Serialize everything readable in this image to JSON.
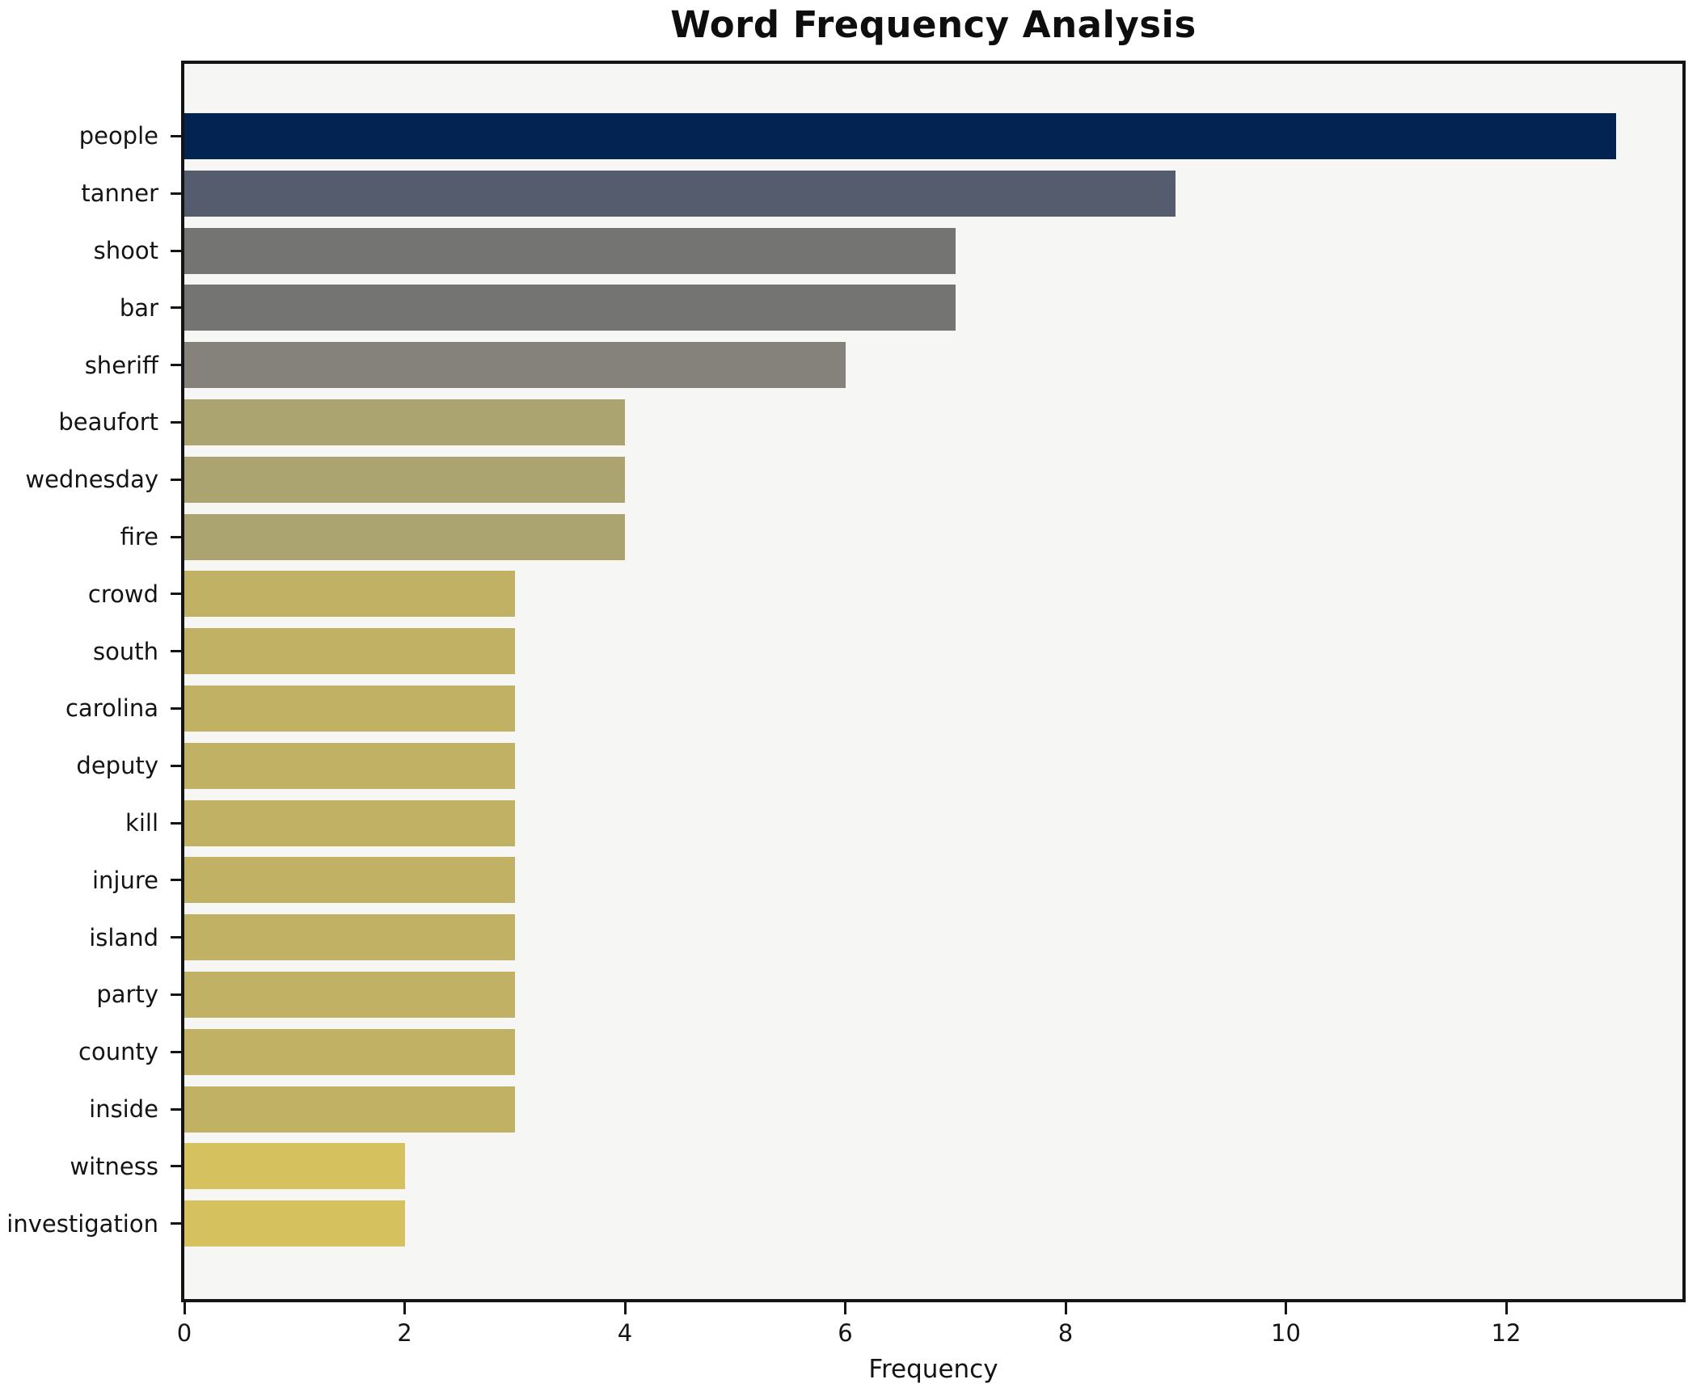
{
  "title": "Word Frequency Analysis",
  "chart_data": {
    "type": "bar",
    "orientation": "horizontal",
    "title": "Word Frequency Analysis",
    "xlabel": "Frequency",
    "ylabel": "",
    "categories": [
      "people",
      "tanner",
      "shoot",
      "bar",
      "sheriff",
      "beaufort",
      "wednesday",
      "fire",
      "crowd",
      "south",
      "carolina",
      "deputy",
      "kill",
      "injure",
      "island",
      "party",
      "county",
      "inside",
      "witness",
      "investigation"
    ],
    "values": [
      13,
      9,
      7,
      7,
      6,
      4,
      4,
      4,
      3,
      3,
      3,
      3,
      3,
      3,
      3,
      3,
      3,
      3,
      2,
      2
    ],
    "bar_colors": [
      "#032452",
      "#545c6e",
      "#747473",
      "#747473",
      "#85827b",
      "#aba471",
      "#aba471",
      "#aba471",
      "#c0b165",
      "#c0b165",
      "#c0b165",
      "#c0b165",
      "#c0b165",
      "#c0b165",
      "#c0b165",
      "#c0b165",
      "#c0b165",
      "#c0b165",
      "#d5c25f",
      "#d5c25f"
    ],
    "x_ticks": [
      0,
      2,
      4,
      6,
      8,
      10,
      12
    ],
    "xlim": [
      0,
      13.6
    ],
    "grid": false,
    "legend": null,
    "colormap_hint": "cividis (dark navy = high frequency, gold = low frequency)",
    "plot_background": "#f6f6f5",
    "frame_color": "#141414",
    "outer_background": "#ffffff"
  }
}
